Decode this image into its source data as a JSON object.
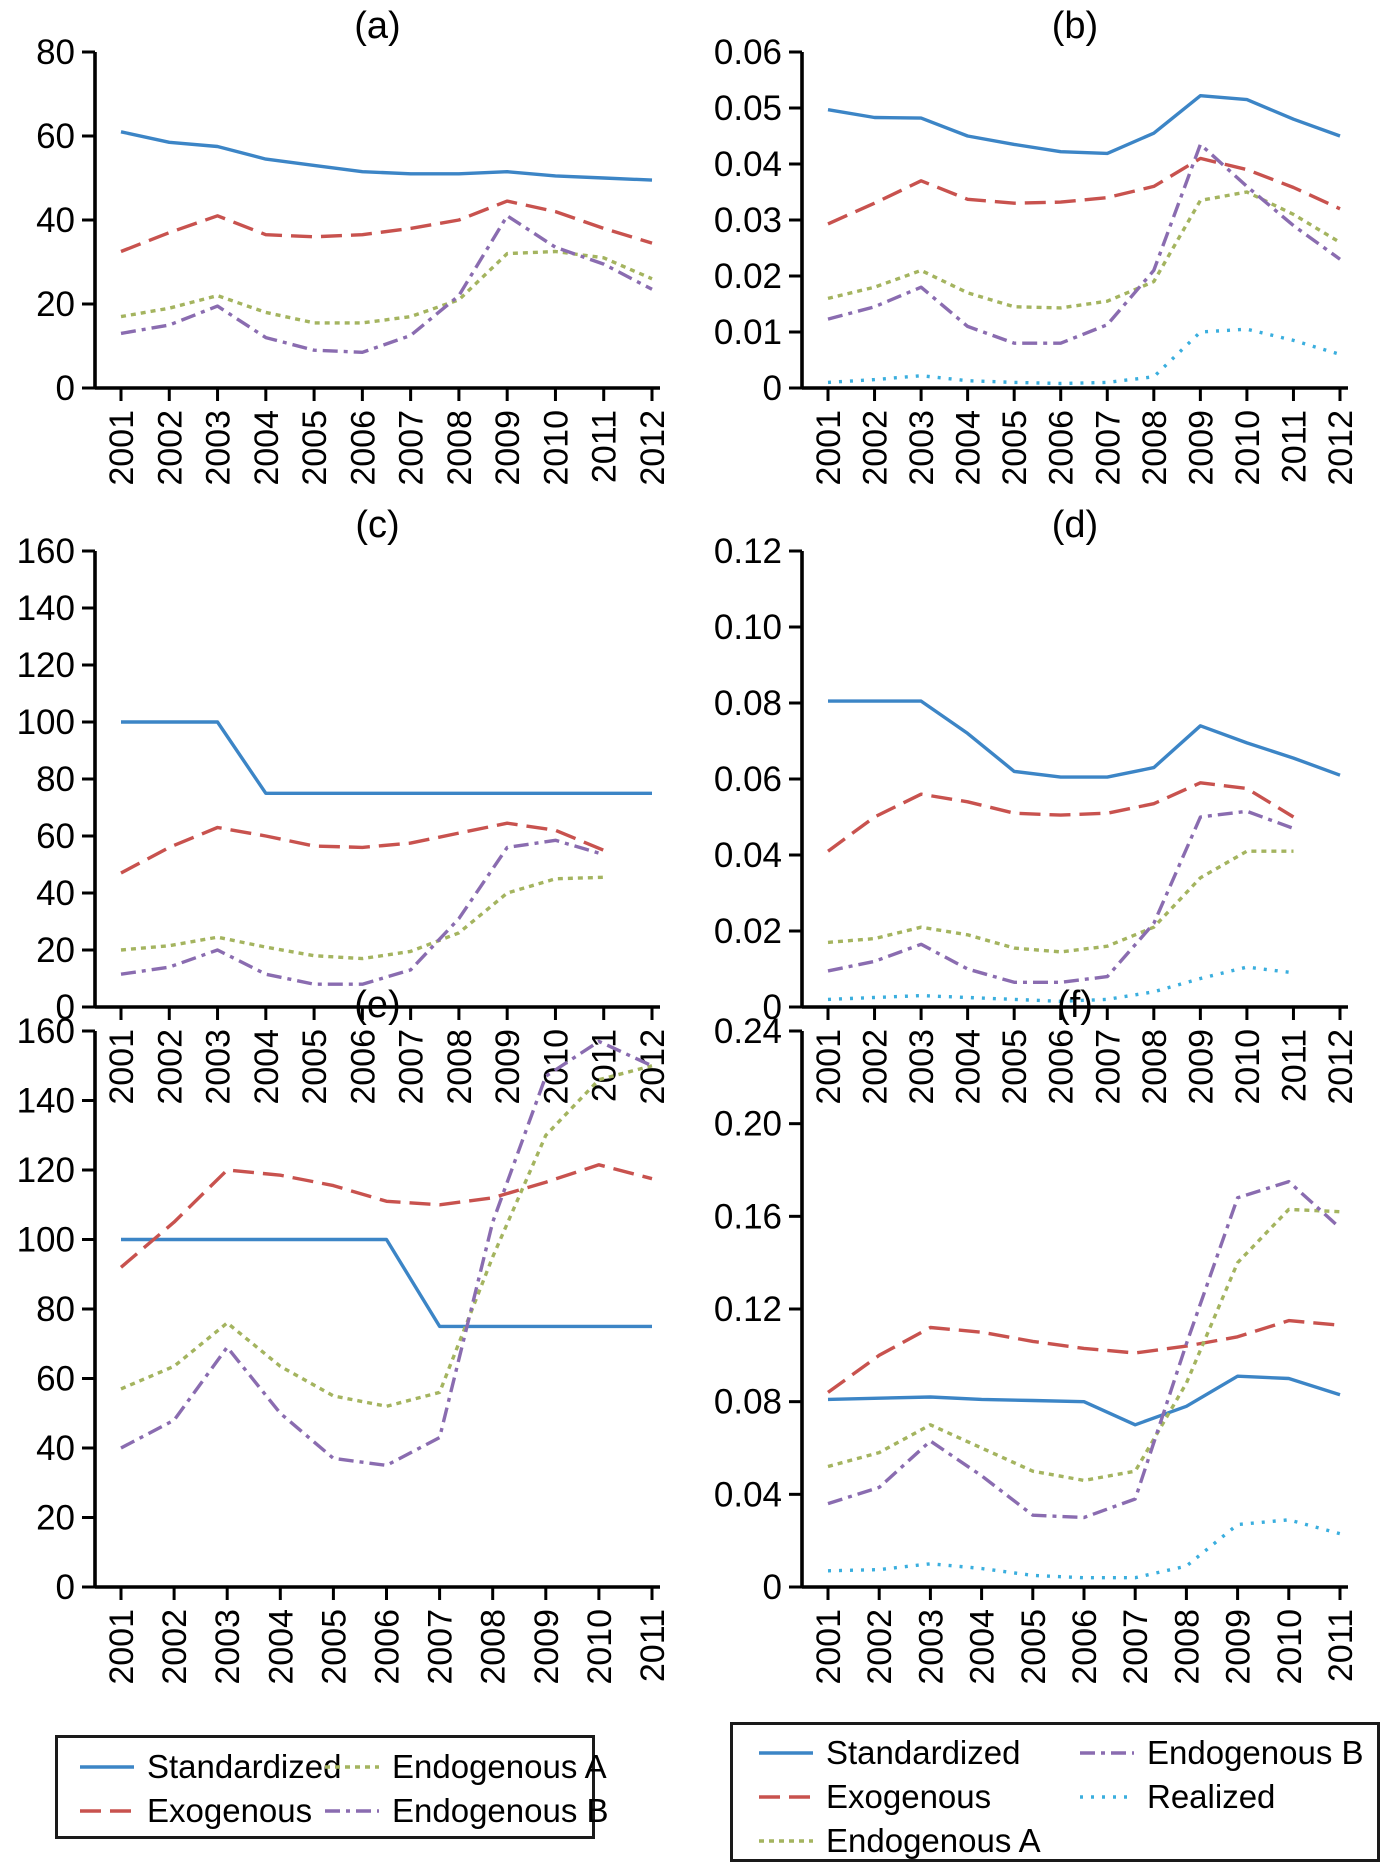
{
  "figure": {
    "panel_titles": [
      "(a)",
      "(b)",
      "(c)",
      "(d)",
      "(e)",
      "(f)"
    ]
  },
  "colors": {
    "standardized": "#3c85c6",
    "exogenous": "#c8524e",
    "endogenous_a": "#a4b45f",
    "endogenous_b": "#8a6cb0",
    "realized": "#3aaede",
    "axis": "#000000",
    "text": "#000000"
  },
  "chart_data": [
    {
      "id": "a",
      "type": "line",
      "title": "(a)",
      "x": [
        "2001",
        "2002",
        "2003",
        "2004",
        "2005",
        "2006",
        "2007",
        "2008",
        "2009",
        "2010",
        "2011",
        "2012"
      ],
      "ylim": [
        0,
        80
      ],
      "yticks": [
        "0",
        "20",
        "40",
        "60",
        "80"
      ],
      "grid": false,
      "series": [
        {
          "name": "Standardized",
          "style": "standardized",
          "values": [
            61,
            58.5,
            57.5,
            54.5,
            53,
            51.5,
            51,
            51,
            51.5,
            50.5,
            50,
            49.5
          ]
        },
        {
          "name": "Exogenous",
          "style": "exogenous",
          "values": [
            32.5,
            37,
            41,
            36.5,
            36,
            36.5,
            38,
            40,
            44.5,
            42,
            38,
            34.5
          ]
        },
        {
          "name": "Endogenous A",
          "style": "endogenous_a",
          "values": [
            17,
            19,
            22,
            18,
            15.5,
            15.5,
            17,
            21,
            32,
            32.5,
            31,
            26
          ]
        },
        {
          "name": "Endogenous B",
          "style": "endogenous_b",
          "values": [
            13,
            15,
            19.5,
            12,
            9,
            8.5,
            12.5,
            22,
            41,
            33.5,
            29.5,
            23.5
          ]
        }
      ]
    },
    {
      "id": "b",
      "type": "line",
      "title": "(b)",
      "x": [
        "2001",
        "2002",
        "2003",
        "2004",
        "2005",
        "2006",
        "2007",
        "2008",
        "2009",
        "2010",
        "2011",
        "2012"
      ],
      "ylim": [
        0,
        0.06
      ],
      "yticks": [
        "0",
        "0.01",
        "0.02",
        "0.03",
        "0.04",
        "0.05",
        "0.06"
      ],
      "grid": false,
      "series": [
        {
          "name": "Standardized",
          "style": "standardized",
          "values": [
            0.0497,
            0.0483,
            0.0482,
            0.045,
            0.0435,
            0.0422,
            0.0419,
            0.0455,
            0.0522,
            0.0515,
            0.048,
            0.045
          ]
        },
        {
          "name": "Exogenous",
          "style": "exogenous",
          "values": [
            0.0293,
            0.033,
            0.037,
            0.0337,
            0.033,
            0.0332,
            0.034,
            0.036,
            0.041,
            0.039,
            0.0358,
            0.032
          ]
        },
        {
          "name": "Endogenous A",
          "style": "endogenous_a",
          "values": [
            0.016,
            0.018,
            0.021,
            0.017,
            0.0145,
            0.0143,
            0.0155,
            0.019,
            0.0335,
            0.035,
            0.031,
            0.026
          ]
        },
        {
          "name": "Endogenous B",
          "style": "endogenous_b",
          "values": [
            0.0123,
            0.0145,
            0.018,
            0.011,
            0.008,
            0.008,
            0.0113,
            0.021,
            0.0435,
            0.036,
            0.029,
            0.023
          ]
        },
        {
          "name": "Realized",
          "style": "realized",
          "values": [
            0.001,
            0.0015,
            0.0022,
            0.0013,
            0.001,
            0.0008,
            0.001,
            0.002,
            0.01,
            0.0105,
            0.0085,
            0.006
          ]
        }
      ]
    },
    {
      "id": "c",
      "type": "line",
      "title": "(c)",
      "x": [
        "2001",
        "2002",
        "2003",
        "2004",
        "2005",
        "2006",
        "2007",
        "2008",
        "2009",
        "2010",
        "2011",
        "2012"
      ],
      "ylim": [
        0,
        160
      ],
      "yticks": [
        "0",
        "20",
        "40",
        "60",
        "80",
        "100",
        "120",
        "140",
        "160"
      ],
      "grid": false,
      "series": [
        {
          "name": "Standardized",
          "style": "standardized",
          "values": [
            100,
            100,
            100,
            75,
            75,
            75,
            75,
            75,
            75,
            75,
            75,
            75
          ]
        },
        {
          "name": "Exogenous",
          "style": "exogenous",
          "values": [
            47,
            56,
            63,
            60,
            56.5,
            56,
            57.5,
            61,
            64.5,
            62,
            55
          ]
        },
        {
          "name": "Endogenous A",
          "style": "endogenous_a",
          "values": [
            20,
            21.5,
            24.5,
            21,
            18,
            17,
            19.5,
            26,
            40,
            45,
            45.5
          ]
        },
        {
          "name": "Endogenous B",
          "style": "endogenous_b",
          "values": [
            11.5,
            14,
            20,
            11.5,
            8,
            8,
            13,
            31,
            56,
            58.5,
            53.5
          ]
        }
      ]
    },
    {
      "id": "d",
      "type": "line",
      "title": "(d)",
      "x": [
        "2001",
        "2002",
        "2003",
        "2004",
        "2005",
        "2006",
        "2007",
        "2008",
        "2009",
        "2010",
        "2011",
        "2012"
      ],
      "ylim": [
        0,
        0.12
      ],
      "yticks": [
        "0",
        "0.02",
        "0.04",
        "0.06",
        "0.08",
        "0.10",
        "0.12"
      ],
      "grid": false,
      "series": [
        {
          "name": "Standardized",
          "style": "standardized",
          "values": [
            0.0805,
            0.0805,
            0.0805,
            0.072,
            0.062,
            0.0605,
            0.0605,
            0.063,
            0.074,
            0.0695,
            0.0655,
            0.061
          ]
        },
        {
          "name": "Exogenous",
          "style": "exogenous",
          "values": [
            0.041,
            0.05,
            0.056,
            0.054,
            0.051,
            0.0505,
            0.051,
            0.0535,
            0.059,
            0.0575,
            0.05
          ]
        },
        {
          "name": "Endogenous A",
          "style": "endogenous_a",
          "values": [
            0.017,
            0.018,
            0.021,
            0.019,
            0.0155,
            0.0145,
            0.016,
            0.021,
            0.034,
            0.041,
            0.041
          ]
        },
        {
          "name": "Endogenous B",
          "style": "endogenous_b",
          "values": [
            0.0095,
            0.012,
            0.0165,
            0.01,
            0.0065,
            0.0065,
            0.008,
            0.022,
            0.05,
            0.0515,
            0.047
          ]
        },
        {
          "name": "Realized",
          "style": "realized",
          "values": [
            0.002,
            0.0025,
            0.003,
            0.0025,
            0.002,
            0.0015,
            0.002,
            0.004,
            0.0075,
            0.0105,
            0.009
          ]
        }
      ]
    },
    {
      "id": "e",
      "type": "line",
      "title": "(e)",
      "x": [
        "2001",
        "2002",
        "2003",
        "2004",
        "2005",
        "2006",
        "2007",
        "2008",
        "2009",
        "2010",
        "2011"
      ],
      "ylim": [
        0,
        160
      ],
      "yticks": [
        "0",
        "20",
        "40",
        "60",
        "80",
        "100",
        "120",
        "140",
        "160"
      ],
      "grid": false,
      "series": [
        {
          "name": "Standardized",
          "style": "standardized",
          "values": [
            100,
            100,
            100,
            100,
            100,
            100,
            75,
            75,
            75,
            75,
            75
          ]
        },
        {
          "name": "Exogenous",
          "style": "exogenous",
          "values": [
            92,
            105,
            120,
            118.5,
            115.5,
            111,
            110,
            112,
            116.5,
            121.5,
            117.5
          ]
        },
        {
          "name": "Endogenous A",
          "style": "endogenous_a",
          "values": [
            57,
            63.5,
            76,
            63.5,
            55,
            52,
            56,
            95,
            130,
            146,
            150
          ]
        },
        {
          "name": "Endogenous B",
          "style": "endogenous_b",
          "values": [
            40,
            48,
            69,
            50,
            37,
            35,
            43,
            105,
            147,
            157,
            150
          ]
        }
      ]
    },
    {
      "id": "f",
      "type": "line",
      "title": "(f)",
      "x": [
        "2001",
        "2002",
        "2003",
        "2004",
        "2005",
        "2006",
        "2007",
        "2008",
        "2009",
        "2010",
        "2011"
      ],
      "ylim": [
        0,
        0.24
      ],
      "yticks": [
        "0",
        "0.04",
        "0.08",
        "0.12",
        "0.16",
        "0.20",
        "0.24"
      ],
      "grid": false,
      "series": [
        {
          "name": "Standardized",
          "style": "standardized",
          "values": [
            0.081,
            0.0815,
            0.082,
            0.081,
            0.0805,
            0.08,
            0.07,
            0.078,
            0.091,
            0.09,
            0.083
          ]
        },
        {
          "name": "Exogenous",
          "style": "exogenous",
          "values": [
            0.084,
            0.1,
            0.112,
            0.11,
            0.106,
            0.103,
            0.101,
            0.104,
            0.108,
            0.115,
            0.113
          ]
        },
        {
          "name": "Endogenous A",
          "style": "endogenous_a",
          "values": [
            0.052,
            0.058,
            0.07,
            0.06,
            0.05,
            0.046,
            0.05,
            0.088,
            0.14,
            0.163,
            0.162
          ]
        },
        {
          "name": "Endogenous B",
          "style": "endogenous_b",
          "values": [
            0.036,
            0.043,
            0.063,
            0.048,
            0.031,
            0.03,
            0.038,
            0.105,
            0.168,
            0.175,
            0.155
          ]
        },
        {
          "name": "Realized",
          "style": "realized",
          "values": [
            0.007,
            0.0075,
            0.01,
            0.008,
            0.005,
            0.004,
            0.004,
            0.009,
            0.027,
            0.029,
            0.023
          ]
        }
      ]
    }
  ],
  "legend_left": {
    "columns": [
      [
        {
          "label": "Standardized",
          "style": "standardized"
        },
        {
          "label": "Exogenous",
          "style": "exogenous"
        }
      ],
      [
        {
          "label": "Endogenous A",
          "style": "endogenous_a"
        },
        {
          "label": "Endogenous B",
          "style": "endogenous_b"
        }
      ]
    ]
  },
  "legend_right": {
    "columns": [
      [
        {
          "label": "Standardized",
          "style": "standardized"
        },
        {
          "label": "Exogenous",
          "style": "exogenous"
        },
        {
          "label": "Endogenous A",
          "style": "endogenous_a"
        }
      ],
      [
        {
          "label": "Endogenous B",
          "style": "endogenous_b"
        },
        {
          "label": "Realized",
          "style": "realized"
        }
      ]
    ]
  }
}
